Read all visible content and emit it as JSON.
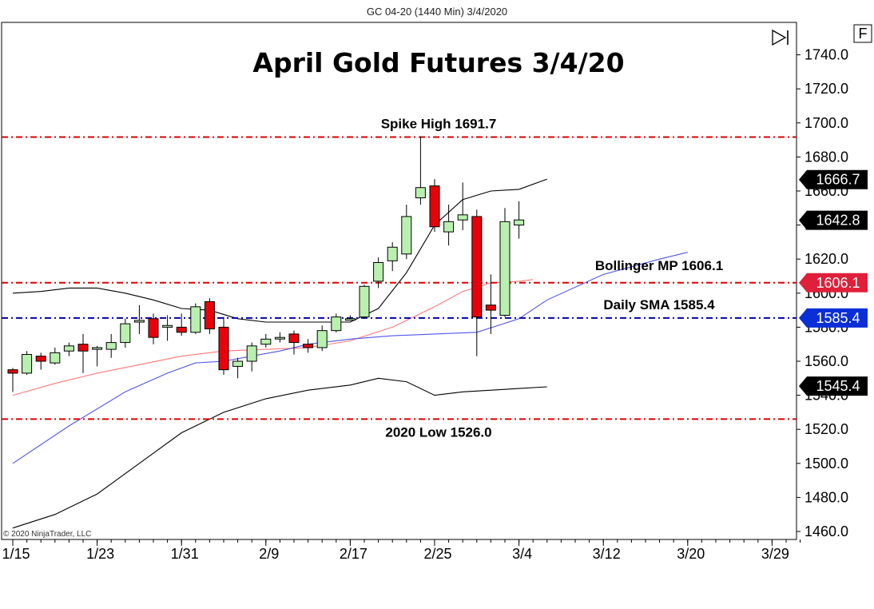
{
  "header": {
    "instrument_label": "GC 04-20 (1440 Min)  3/4/2020",
    "f_button": "F"
  },
  "chart_data": {
    "type": "candlestick",
    "title": "April Gold Futures 3/4/20",
    "ylim": [
      1455,
      1750
    ],
    "y_ticks": [
      "1740.0",
      "1720.0",
      "1700.0",
      "1680.0",
      "1660.0",
      "1640.0",
      "1620.0",
      "1600.0",
      "1580.0",
      "1560.0",
      "1540.0",
      "1520.0",
      "1500.0",
      "1480.0",
      "1460.0"
    ],
    "y_tick_values": [
      1740,
      1720,
      1700,
      1680,
      1660,
      1640,
      1620,
      1600,
      1580,
      1560,
      1540,
      1520,
      1500,
      1480,
      1460
    ],
    "x_ticks": [
      "1/15",
      "1/23",
      "1/31",
      "2/9",
      "2/17",
      "2/25",
      "3/4",
      "3/12",
      "3/20",
      "3/29"
    ],
    "x_tick_bar_index": [
      0,
      6,
      12,
      18,
      24,
      30,
      36,
      42,
      48,
      54
    ],
    "bar_count_visible": 57,
    "up_color": "#b9f0b0",
    "down_color": "#e8000b",
    "candles": [
      {
        "date": "1/15",
        "o": 1555,
        "h": 1556,
        "l": 1542,
        "c": 1553
      },
      {
        "date": "1/16",
        "o": 1553,
        "h": 1566,
        "l": 1552,
        "c": 1564
      },
      {
        "date": "1/17",
        "o": 1563,
        "h": 1565,
        "l": 1555,
        "c": 1560
      },
      {
        "date": "1/20",
        "o": 1559,
        "h": 1568,
        "l": 1558,
        "c": 1565
      },
      {
        "date": "1/21",
        "o": 1566,
        "h": 1571,
        "l": 1563,
        "c": 1569
      },
      {
        "date": "1/22",
        "o": 1570,
        "h": 1576,
        "l": 1553,
        "c": 1566
      },
      {
        "date": "1/23",
        "o": 1567,
        "h": 1569,
        "l": 1557,
        "c": 1568
      },
      {
        "date": "1/24",
        "o": 1567,
        "h": 1576,
        "l": 1562,
        "c": 1571
      },
      {
        "date": "1/27",
        "o": 1571,
        "h": 1585,
        "l": 1568,
        "c": 1582
      },
      {
        "date": "1/28",
        "o": 1583,
        "h": 1593,
        "l": 1576,
        "c": 1584
      },
      {
        "date": "1/29",
        "o": 1585,
        "h": 1588,
        "l": 1570,
        "c": 1574
      },
      {
        "date": "1/30",
        "o": 1580,
        "h": 1587,
        "l": 1572,
        "c": 1581
      },
      {
        "date": "1/31",
        "o": 1580,
        "h": 1588,
        "l": 1575,
        "c": 1577
      },
      {
        "date": "2/3",
        "o": 1577,
        "h": 1594,
        "l": 1576,
        "c": 1592
      },
      {
        "date": "2/4",
        "o": 1595,
        "h": 1597,
        "l": 1576,
        "c": 1579
      },
      {
        "date": "2/5",
        "o": 1580,
        "h": 1586,
        "l": 1552,
        "c": 1555
      },
      {
        "date": "2/6",
        "o": 1557,
        "h": 1562,
        "l": 1550,
        "c": 1560
      },
      {
        "date": "2/7",
        "o": 1560,
        "h": 1571,
        "l": 1554,
        "c": 1569
      },
      {
        "date": "2/10",
        "o": 1570,
        "h": 1576,
        "l": 1568,
        "c": 1573
      },
      {
        "date": "2/11",
        "o": 1574,
        "h": 1577,
        "l": 1571,
        "c": 1574
      },
      {
        "date": "2/12",
        "o": 1576,
        "h": 1578,
        "l": 1564,
        "c": 1571
      },
      {
        "date": "2/13",
        "o": 1570,
        "h": 1573,
        "l": 1565,
        "c": 1568
      },
      {
        "date": "2/14",
        "o": 1568,
        "h": 1581,
        "l": 1566,
        "c": 1578
      },
      {
        "date": "2/18",
        "o": 1578,
        "h": 1588,
        "l": 1577,
        "c": 1586
      },
      {
        "date": "2/19",
        "o": 1585,
        "h": 1587,
        "l": 1584,
        "c": 1585
      },
      {
        "date": "2/20",
        "o": 1586,
        "h": 1605,
        "l": 1585,
        "c": 1604
      },
      {
        "date": "2/21",
        "o": 1607,
        "h": 1621,
        "l": 1603,
        "c": 1618
      },
      {
        "date": "2/24",
        "o": 1619,
        "h": 1630,
        "l": 1613,
        "c": 1627
      },
      {
        "date": "2/25",
        "o": 1623,
        "h": 1652,
        "l": 1620,
        "c": 1645
      },
      {
        "date": "2/26",
        "o": 1656,
        "h": 1692,
        "l": 1652,
        "c": 1662
      },
      {
        "date": "2/27",
        "o": 1663,
        "h": 1667,
        "l": 1636,
        "c": 1639
      },
      {
        "date": "2/28",
        "o": 1636,
        "h": 1652,
        "l": 1628,
        "c": 1642
      },
      {
        "date": "3/2",
        "o": 1643,
        "h": 1665,
        "l": 1637,
        "c": 1646
      },
      {
        "date": "3/3",
        "o": 1645,
        "h": 1649,
        "l": 1563,
        "c": 1586
      },
      {
        "date": "3/4",
        "o": 1593,
        "h": 1611,
        "l": 1576,
        "c": 1590
      },
      {
        "date": "3/5",
        "o": 1587,
        "h": 1650,
        "l": 1586,
        "c": 1642
      },
      {
        "date": "3/6",
        "o": 1640,
        "h": 1654,
        "l": 1632,
        "c": 1643
      }
    ],
    "series": [
      {
        "name": "Bollinger upper",
        "color": "#000000",
        "values": [
          [
            0,
            1600
          ],
          [
            2,
            1601
          ],
          [
            4,
            1603
          ],
          [
            6,
            1603
          ],
          [
            8,
            1600
          ],
          [
            10,
            1596
          ],
          [
            12,
            1591
          ],
          [
            14,
            1590
          ],
          [
            16,
            1585
          ],
          [
            18,
            1583
          ],
          [
            20,
            1583
          ],
          [
            22,
            1583
          ],
          [
            24,
            1583
          ],
          [
            26,
            1591
          ],
          [
            28,
            1612
          ],
          [
            30,
            1640
          ],
          [
            32,
            1655
          ],
          [
            34,
            1660
          ],
          [
            36,
            1661
          ],
          [
            38,
            1667
          ]
        ]
      },
      {
        "name": "Bollinger midpoint",
        "color": "#ff7777",
        "values": [
          [
            0,
            1540
          ],
          [
            3,
            1547
          ],
          [
            6,
            1553
          ],
          [
            9,
            1558
          ],
          [
            12,
            1563
          ],
          [
            15,
            1566
          ],
          [
            18,
            1567
          ],
          [
            21,
            1568
          ],
          [
            24,
            1572
          ],
          [
            27,
            1580
          ],
          [
            30,
            1592
          ],
          [
            32,
            1601
          ],
          [
            34,
            1606
          ],
          [
            36,
            1607
          ],
          [
            37,
            1608
          ]
        ]
      },
      {
        "name": "Daily SMA",
        "color": "#5055e6",
        "values": [
          [
            0,
            1500
          ],
          [
            4,
            1522
          ],
          [
            8,
            1542
          ],
          [
            11,
            1553
          ],
          [
            13,
            1559
          ],
          [
            15,
            1560
          ],
          [
            17,
            1563
          ],
          [
            19,
            1566
          ],
          [
            21,
            1570
          ],
          [
            24,
            1573
          ],
          [
            27,
            1575
          ],
          [
            30,
            1576
          ],
          [
            33,
            1577
          ],
          [
            36,
            1585
          ],
          [
            38,
            1596
          ],
          [
            42,
            1611
          ],
          [
            46,
            1620
          ],
          [
            48,
            1624
          ]
        ]
      },
      {
        "name": "Bollinger lower",
        "color": "#000000",
        "values": [
          [
            0,
            1462
          ],
          [
            3,
            1470
          ],
          [
            6,
            1482
          ],
          [
            9,
            1500
          ],
          [
            12,
            1518
          ],
          [
            15,
            1530
          ],
          [
            18,
            1538
          ],
          [
            21,
            1543
          ],
          [
            24,
            1546
          ],
          [
            26,
            1550
          ],
          [
            28,
            1548
          ],
          [
            30,
            1540
          ],
          [
            32,
            1542
          ],
          [
            36,
            1544
          ],
          [
            38,
            1545
          ]
        ]
      }
    ],
    "levels": [
      {
        "label": "Spike High 1691.7",
        "value": 1691.7,
        "color": "#dd0000",
        "label_pos": "above"
      },
      {
        "label": "Bollinger MP 1606.1",
        "value": 1606.1,
        "color": "#dd0000",
        "label_pos": "above"
      },
      {
        "label": "Daily SMA 1585.4",
        "value": 1585.4,
        "color": "#0000aa",
        "label_pos": "above"
      },
      {
        "label": "2020 Low 1526.0",
        "value": 1526.0,
        "color": "#dd0000",
        "label_pos": "below"
      }
    ],
    "price_badges": [
      {
        "text": "1666.7",
        "value": 1666.7,
        "color": "#000000"
      },
      {
        "text": "1642.8",
        "value": 1642.8,
        "color": "#000000"
      },
      {
        "text": "1606.1",
        "value": 1606.1,
        "color": "#e0203a"
      },
      {
        "text": "1585.4",
        "value": 1585.4,
        "color": "#0a2fd6"
      },
      {
        "text": "1545.4",
        "value": 1545.4,
        "color": "#000000"
      }
    ],
    "copyright": "© 2020 NinjaTrader, LLC"
  }
}
